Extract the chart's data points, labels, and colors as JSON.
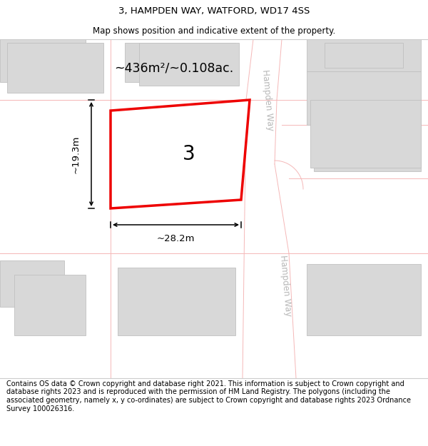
{
  "title": "3, HAMPDEN WAY, WATFORD, WD17 4SS",
  "subtitle": "Map shows position and indicative extent of the property.",
  "footer": "Contains OS data © Crown copyright and database right 2021. This information is subject to Crown copyright and database rights 2023 and is reproduced with the permission of HM Land Registry. The polygons (including the associated geometry, namely x, y co-ordinates) are subject to Crown copyright and database rights 2023 Ordnance Survey 100026316.",
  "bg_color": "#ffffff",
  "map_bg": "#ffffff",
  "building_color": "#d8d8d8",
  "road_line_color": "#f5b8b8",
  "highlight_color": "#ee0000",
  "road_label_color": "#b8b8b8",
  "number_label": "3",
  "area_label": "~436m²/~0.108ac.",
  "width_label": "~28.2m",
  "height_label": "~19.3m",
  "title_fontsize": 9.5,
  "subtitle_fontsize": 8.5,
  "footer_fontsize": 7.0
}
